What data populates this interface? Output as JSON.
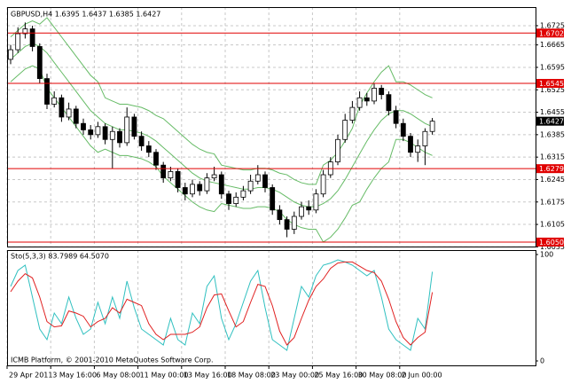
{
  "chart_data": [
    {
      "type": "candlestick",
      "title": "GBPUSD,H4 1.6395 1.6437 1.6385 1.6427",
      "categories": [
        "29 Apr 2011",
        null,
        null,
        null,
        null,
        null,
        "3 May 16:00",
        null,
        null,
        null,
        null,
        null,
        "6 May 08:00",
        null,
        null,
        null,
        null,
        null,
        "11 May 00:00",
        null,
        null,
        null,
        null,
        null,
        "13 May 16:00",
        null,
        null,
        null,
        null,
        null,
        "18 May 08:00",
        null,
        null,
        null,
        null,
        null,
        "23 May 00:00",
        null,
        null,
        null,
        null,
        null,
        "25 May 16:00",
        null,
        null,
        null,
        null,
        null,
        "30 May 08:00",
        null,
        null,
        null,
        null,
        null,
        "2 Jun 00:00",
        null,
        null,
        null,
        null
      ],
      "open": [
        1.662,
        1.665,
        1.67,
        1.6715,
        1.666,
        1.656,
        1.648,
        1.65,
        1.644,
        1.6465,
        1.642,
        1.64,
        1.6385,
        1.641,
        1.637,
        1.6395,
        1.636,
        1.644,
        1.638,
        1.635,
        1.633,
        1.629,
        1.625,
        1.627,
        1.622,
        1.62,
        1.623,
        1.621,
        1.625,
        1.626,
        1.62,
        1.617,
        1.619,
        1.621,
        1.624,
        1.626,
        1.622,
        1.615,
        1.612,
        1.609,
        1.613,
        1.616,
        1.615,
        1.62,
        1.626,
        1.63,
        1.637,
        1.643,
        1.647,
        1.65,
        1.649,
        1.653,
        1.651,
        1.646,
        1.642,
        1.638,
        1.633,
        1.635,
        1.6395
      ],
      "high": [
        1.6665,
        1.672,
        1.6735,
        1.6725,
        1.667,
        1.6575,
        1.652,
        1.651,
        1.6485,
        1.6475,
        1.6435,
        1.6415,
        1.6425,
        1.642,
        1.641,
        1.6405,
        1.647,
        1.645,
        1.6395,
        1.6365,
        1.634,
        1.63,
        1.6285,
        1.628,
        1.6235,
        1.6245,
        1.624,
        1.6265,
        1.6285,
        1.627,
        1.621,
        1.6205,
        1.6225,
        1.626,
        1.629,
        1.627,
        1.623,
        1.6165,
        1.613,
        1.6145,
        1.6175,
        1.618,
        1.6215,
        1.6275,
        1.6315,
        1.6385,
        1.645,
        1.649,
        1.652,
        1.6515,
        1.6545,
        1.654,
        1.652,
        1.6475,
        1.6435,
        1.639,
        1.637,
        1.6405,
        1.6437
      ],
      "low": [
        1.6605,
        1.664,
        1.6685,
        1.6645,
        1.6545,
        1.6465,
        1.647,
        1.6425,
        1.643,
        1.6405,
        1.6385,
        1.637,
        1.6375,
        1.6355,
        1.628,
        1.6345,
        1.635,
        1.637,
        1.6335,
        1.6315,
        1.6275,
        1.6235,
        1.624,
        1.6205,
        1.618,
        1.619,
        1.6195,
        1.62,
        1.624,
        1.6185,
        1.615,
        1.616,
        1.618,
        1.62,
        1.623,
        1.6205,
        1.6135,
        1.6105,
        1.6065,
        1.6075,
        1.612,
        1.6135,
        1.614,
        1.619,
        1.625,
        1.629,
        1.636,
        1.642,
        1.646,
        1.6475,
        1.648,
        1.6495,
        1.6445,
        1.6405,
        1.6365,
        1.6315,
        1.63,
        1.629,
        1.6385
      ],
      "close": [
        1.665,
        1.67,
        1.6715,
        1.666,
        1.656,
        1.648,
        1.65,
        1.644,
        1.6465,
        1.642,
        1.64,
        1.6385,
        1.641,
        1.637,
        1.6395,
        1.636,
        1.644,
        1.638,
        1.635,
        1.633,
        1.629,
        1.625,
        1.627,
        1.622,
        1.62,
        1.623,
        1.621,
        1.625,
        1.626,
        1.62,
        1.617,
        1.619,
        1.621,
        1.624,
        1.626,
        1.622,
        1.615,
        1.612,
        1.609,
        1.613,
        1.616,
        1.615,
        1.62,
        1.626,
        1.63,
        1.637,
        1.643,
        1.647,
        1.65,
        1.649,
        1.653,
        1.651,
        1.646,
        1.642,
        1.638,
        1.633,
        1.635,
        1.6395,
        1.6427
      ],
      "up_color": "#ffffff",
      "down_color": "#000000",
      "series": [
        {
          "color": "#66bb66",
          "values": [
            1.669,
            1.671,
            1.673,
            1.674,
            1.673,
            1.675,
            1.672,
            1.669,
            1.666,
            1.663,
            1.66,
            1.657,
            1.655,
            1.65,
            1.649,
            1.648,
            1.648,
            1.6475,
            1.647,
            1.646,
            1.6445,
            1.6435,
            1.6415,
            1.6395,
            1.6375,
            1.6355,
            1.634,
            1.633,
            1.6325,
            1.629,
            1.6285,
            1.628,
            1.6275,
            1.6275,
            1.628,
            1.628,
            1.6275,
            1.6265,
            1.626,
            1.6245,
            1.6235,
            1.623,
            1.623,
            1.629,
            1.6305,
            1.633,
            1.6365,
            1.6405,
            1.6475,
            1.6515,
            1.655,
            1.658,
            1.66,
            1.655,
            1.655,
            1.654,
            1.6525,
            1.651,
            1.65
          ]
        },
        {
          "color": "#66bb66",
          "values": [
            1.662,
            1.664,
            1.666,
            1.667,
            1.666,
            1.664,
            1.661,
            1.658,
            1.655,
            1.652,
            1.649,
            1.646,
            1.644,
            1.642,
            1.641,
            1.64,
            1.64,
            1.6395,
            1.639,
            1.638,
            1.6365,
            1.6345,
            1.6325,
            1.6305,
            1.6285,
            1.6265,
            1.625,
            1.624,
            1.6235,
            1.623,
            1.6225,
            1.622,
            1.6215,
            1.6215,
            1.622,
            1.622,
            1.6215,
            1.6205,
            1.619,
            1.6175,
            1.6165,
            1.616,
            1.616,
            1.617,
            1.6185,
            1.621,
            1.6245,
            1.6285,
            1.6325,
            1.6365,
            1.64,
            1.643,
            1.645,
            1.646,
            1.646,
            1.645,
            1.6435,
            1.642,
            1.641
          ]
        },
        {
          "color": "#66bb66",
          "values": [
            1.655,
            1.657,
            1.659,
            1.66,
            1.659,
            1.653,
            1.65,
            1.647,
            1.644,
            1.641,
            1.638,
            1.635,
            1.633,
            1.634,
            1.633,
            1.632,
            1.632,
            1.6315,
            1.631,
            1.63,
            1.6285,
            1.6255,
            1.6235,
            1.6215,
            1.6195,
            1.6175,
            1.616,
            1.615,
            1.6145,
            1.617,
            1.6165,
            1.616,
            1.6155,
            1.6155,
            1.616,
            1.616,
            1.6155,
            1.6145,
            1.612,
            1.6105,
            1.6095,
            1.609,
            1.609,
            1.605,
            1.6065,
            1.609,
            1.6125,
            1.6165,
            1.6175,
            1.6215,
            1.625,
            1.628,
            1.63,
            1.637,
            1.637,
            1.636,
            1.6345,
            1.633,
            1.632
          ]
        }
      ],
      "ylim": [
        1.6036,
        1.6783
      ],
      "yticks": [
        1.6725,
        1.6665,
        1.6595,
        1.6525,
        1.6455,
        1.6385,
        1.6315,
        1.6245,
        1.6175,
        1.6105,
        1.6035
      ],
      "levels": [
        1.6702,
        1.6545,
        1.6279,
        {
          "value": 1.605,
          "label": "1.6050"
        }
      ],
      "level_color": "#e00000",
      "last_price": 1.6427,
      "grid": true
    },
    {
      "type": "line",
      "title": "Sto(5,3,3) 83.7989 64.5070",
      "series": [
        {
          "color": "#30c0c0",
          "values": [
            70,
            85,
            90,
            60,
            30,
            20,
            45,
            35,
            60,
            40,
            25,
            30,
            55,
            35,
            60,
            40,
            75,
            50,
            30,
            25,
            20,
            15,
            40,
            20,
            15,
            45,
            35,
            70,
            80,
            40,
            20,
            35,
            55,
            75,
            85,
            50,
            20,
            15,
            10,
            40,
            70,
            60,
            80,
            90,
            92,
            95,
            93,
            90,
            85,
            80,
            85,
            60,
            30,
            20,
            15,
            10,
            40,
            30,
            83.7989
          ]
        },
        {
          "color": "#e02020",
          "values": [
            65,
            75,
            82,
            78,
            60,
            37,
            32,
            33,
            47,
            45,
            42,
            32,
            37,
            40,
            50,
            45,
            58,
            55,
            52,
            35,
            25,
            20,
            25,
            25,
            25,
            27,
            32,
            50,
            62,
            63,
            47,
            32,
            37,
            55,
            72,
            70,
            52,
            28,
            15,
            22,
            40,
            57,
            70,
            77,
            87,
            92,
            93,
            93,
            89,
            85,
            83,
            75,
            58,
            37,
            22,
            15,
            22,
            27,
            64.507
          ]
        }
      ],
      "ylim": [
        0,
        100
      ],
      "yticks": [
        100,
        0
      ]
    }
  ],
  "footer": "ICMB Platform, © 2001-2010 MetaQuotes Software Corp."
}
